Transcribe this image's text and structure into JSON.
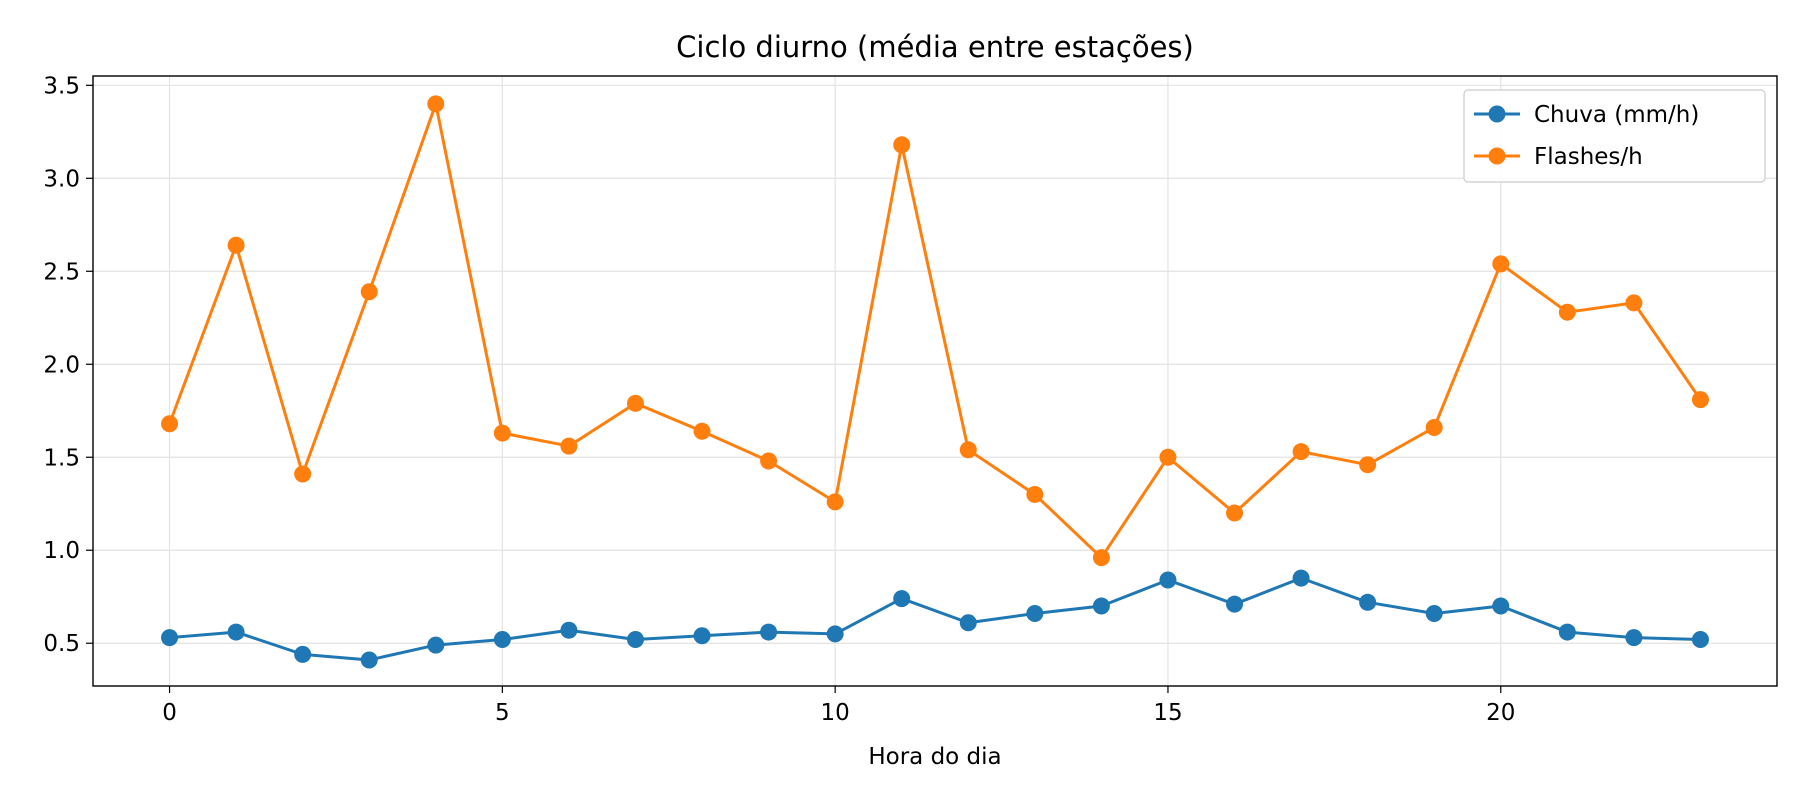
{
  "chart_data": {
    "type": "line",
    "title": "Ciclo diurno (média entre estações)",
    "xlabel": "Hora do dia",
    "ylabel": "",
    "xlim": [
      -1.15,
      24.15
    ],
    "ylim": [
      0.27,
      3.55
    ],
    "x_ticks": [
      0,
      5,
      10,
      15,
      20
    ],
    "x_tick_labels": [
      "0",
      "5",
      "10",
      "15",
      "20"
    ],
    "y_ticks": [
      0.5,
      1.0,
      1.5,
      2.0,
      2.5,
      3.0,
      3.5
    ],
    "y_tick_labels": [
      "0.5",
      "1.0",
      "1.5",
      "2.0",
      "2.5",
      "3.0",
      "3.5"
    ],
    "grid": true,
    "legend_position": "top-right",
    "x": [
      0,
      1,
      2,
      3,
      4,
      5,
      6,
      7,
      8,
      9,
      10,
      11,
      12,
      13,
      14,
      15,
      16,
      17,
      18,
      19,
      20,
      21,
      22,
      23
    ],
    "series": [
      {
        "name": "Chuva (mm/h)",
        "color": "#1f77b4",
        "values": [
          0.53,
          0.56,
          0.44,
          0.41,
          0.49,
          0.52,
          0.57,
          0.52,
          0.54,
          0.56,
          0.55,
          0.74,
          0.61,
          0.66,
          0.7,
          0.84,
          0.71,
          0.85,
          0.72,
          0.66,
          0.7,
          0.56,
          0.53,
          0.52
        ]
      },
      {
        "name": "Flashes/h",
        "color": "#ff7f0e",
        "values": [
          1.68,
          2.64,
          1.41,
          2.39,
          3.4,
          1.63,
          1.56,
          1.79,
          1.64,
          1.48,
          1.26,
          3.18,
          1.54,
          1.3,
          0.96,
          1.5,
          1.2,
          1.53,
          1.46,
          1.66,
          2.54,
          2.28,
          2.33,
          1.81
        ]
      }
    ]
  }
}
